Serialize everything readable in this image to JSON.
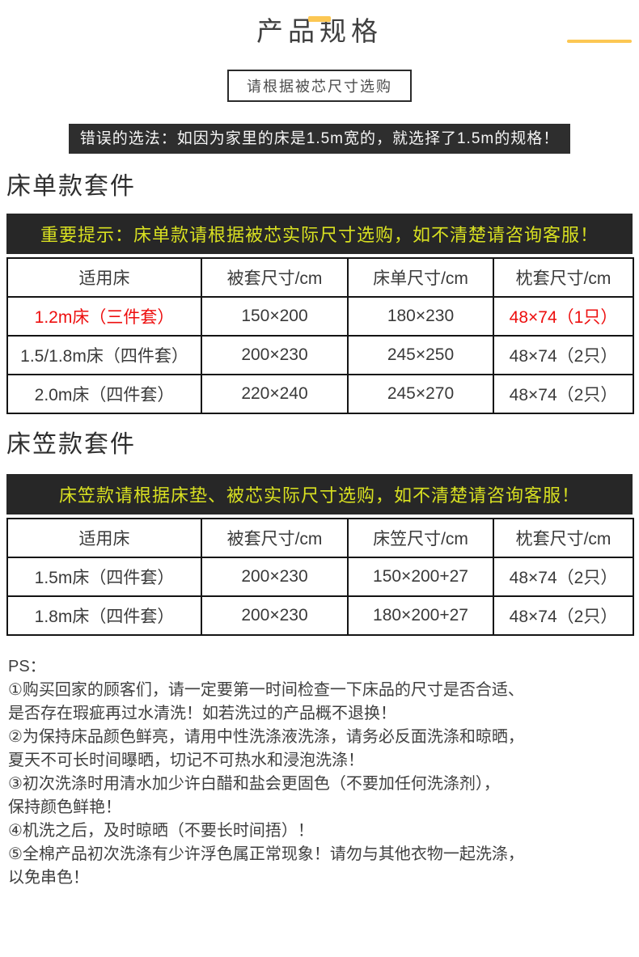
{
  "page": {
    "title": "产品规格",
    "subtitle_box": "请根据被芯尺寸选购",
    "warning_bar": "错误的选法：如因为家里的床是1.5m宽的，就选择了1.5m的规格！"
  },
  "colors": {
    "accent_gold": "#fcc753",
    "bar_dark": "#272727",
    "notice_text_yellow": "#d8e021",
    "highlight_red": "#ed0e0e"
  },
  "section_sheet": {
    "heading": "床单款套件",
    "notice": "重要提示：床单款请根据被芯实际尺寸选购，如不清楚请咨询客服！",
    "table": {
      "headers": [
        "适用床",
        "被套尺寸/cm",
        "床单尺寸/cm",
        "枕套尺寸/cm"
      ],
      "rows": [
        {
          "cells": [
            "1.2m床（三件套）",
            "150×200",
            "180×230",
            "48×74（1只）"
          ]
        },
        {
          "cells": [
            "1.5/1.8m床（四件套）",
            "200×230",
            "245×250",
            "48×74（2只）"
          ]
        },
        {
          "cells": [
            "2.0m床（四件套）",
            "220×240",
            "245×270",
            "48×74（2只）"
          ]
        }
      ]
    }
  },
  "section_fitted": {
    "heading": "床笠款套件",
    "notice": "床笠款请根据床垫、被芯实际尺寸选购，如不清楚请咨询客服！",
    "table": {
      "headers": [
        "适用床",
        "被套尺寸/cm",
        "床笠尺寸/cm",
        "枕套尺寸/cm"
      ],
      "rows": [
        {
          "cells": [
            "1.5m床（四件套）",
            "200×230",
            "150×200+27",
            "48×74（2只）"
          ]
        },
        {
          "cells": [
            "1.8m床（四件套）",
            "200×230",
            "180×200+27",
            "48×74（2只）"
          ]
        }
      ]
    }
  },
  "ps": {
    "label": "PS：",
    "lines": [
      "①购买回家的顾客们，请一定要第一时间检查一下床品的尺寸是否合适、",
      "是否存在瑕疵再过水清洗！如若洗过的产品概不退换！",
      "②为保持床品颜色鲜亮，请用中性洗涤液洗涤，请务必反面洗涤和晾晒，",
      "夏天不可长时间曝晒，切记不可热水和浸泡洗涤！",
      "③初次洗涤时用清水加少许白醋和盐会更固色（不要加任何洗涤剂），",
      "保持颜色鲜艳！",
      "④机洗之后，及时晾晒（不要长时间捂）！",
      "⑤全棉产品初次洗涤有少许浮色属正常现象！请勿与其他衣物一起洗涤，",
      "以免串色！"
    ]
  }
}
